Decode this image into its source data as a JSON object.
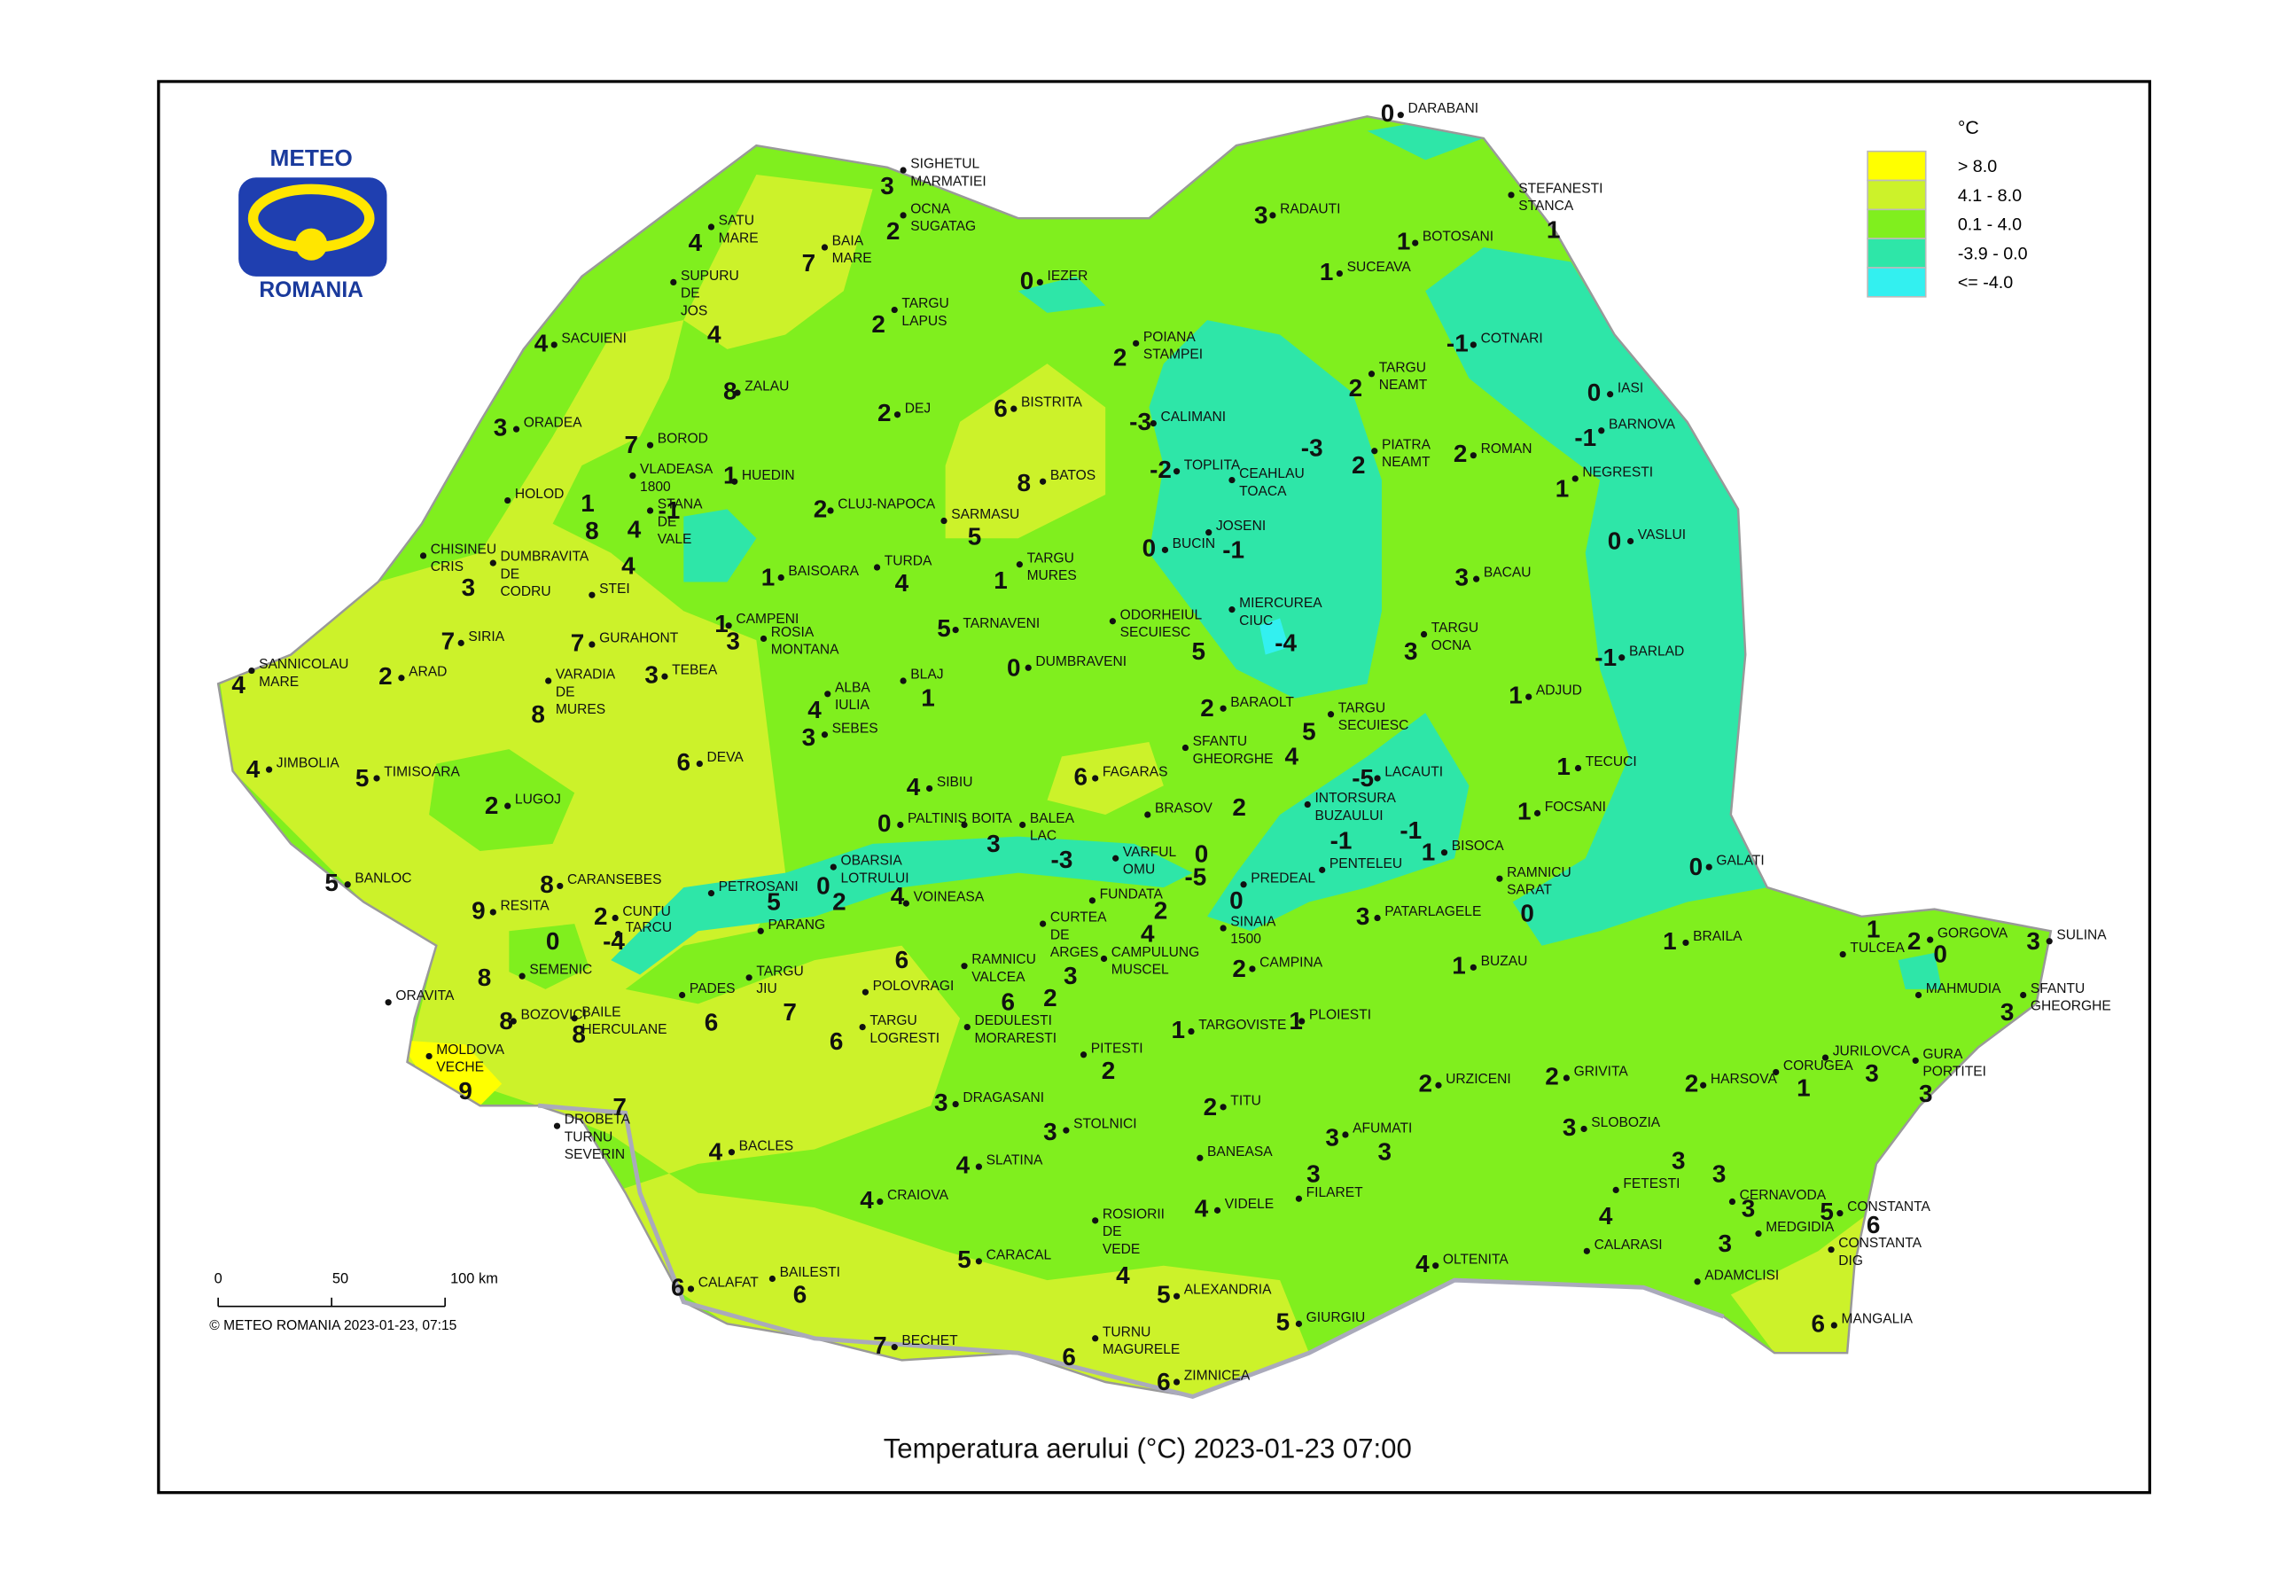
{
  "logo": {
    "top": "METEO",
    "bottom": "ROMANIA"
  },
  "legend": {
    "title": "°C",
    "items": [
      {
        "label": "> 8.0",
        "color": "#ffff00"
      },
      {
        "label": "4.1 - 8.0",
        "color": "#ccf22a"
      },
      {
        "label": "0.1 - 4.0",
        "color": "#80ef1e"
      },
      {
        "label": "-3.9 - 0.0",
        "color": "#2ee6a8"
      },
      {
        "label": "<= -4.0",
        "color": "#33f0f0"
      }
    ]
  },
  "scale_bar": {
    "labels": [
      "0",
      "50",
      "100 km"
    ]
  },
  "credit": "© METEO ROMANIA 2023-01-23, 07:15",
  "title": "Temperatura aerului (°C) 2023-01-23 07:00",
  "stations": [
    {
      "name": [
        "DARABANI"
      ],
      "value": 0
    },
    {
      "name": [
        "SIGHETUL",
        "MARMATIEI"
      ],
      "value": 3
    },
    {
      "name": [
        "OCNA",
        "SUGATAG"
      ],
      "value": 2
    },
    {
      "name": [
        "STEFANESTI",
        "STANCA"
      ],
      "value": 1
    },
    {
      "name": [
        "RADAUTI"
      ],
      "value": 3
    },
    {
      "name": [
        "BOTOSANI"
      ],
      "value": 1
    },
    {
      "name": [
        "SATU",
        "MARE"
      ],
      "value": 4
    },
    {
      "name": [
        "BAIA",
        "MARE"
      ],
      "value": 7
    },
    {
      "name": [
        "SUCEAVA"
      ],
      "value": 1
    },
    {
      "name": [
        "IEZER"
      ],
      "value": 0
    },
    {
      "name": [
        "SUPURU",
        "DE",
        "JOS"
      ],
      "value": 4
    },
    {
      "name": [
        "TARGU",
        "LAPUS"
      ],
      "value": 2
    },
    {
      "name": [
        "SACUIENI"
      ],
      "value": 4
    },
    {
      "name": [
        "COTNARI"
      ],
      "value": -1
    },
    {
      "name": [
        "POIANA",
        "STAMPEI"
      ],
      "value": 2
    },
    {
      "name": [
        "TARGU",
        "NEAMT"
      ],
      "value": 2
    },
    {
      "name": [
        "IASI"
      ],
      "value": 0
    },
    {
      "name": [
        "ZALAU"
      ],
      "value": 8
    },
    {
      "name": [
        "BISTRITA"
      ],
      "value": 6
    },
    {
      "name": [
        "DEJ"
      ],
      "value": 2
    },
    {
      "name": [
        "CALIMANI"
      ],
      "value": -3
    },
    {
      "name": [
        "BARNOVA"
      ],
      "value": -1
    },
    {
      "name": [
        "ORADEA"
      ],
      "value": 3
    },
    {
      "name": [
        "BOROD"
      ],
      "value": 7
    },
    {
      "name": [
        "PIATRA",
        "NEAMT"
      ],
      "value": 2
    },
    {
      "name": [
        "ROMAN"
      ],
      "value": 2
    },
    {
      "name": [
        "CEAHLAU",
        "TOACA"
      ],
      "value": -3
    },
    {
      "name": [
        "VLADEASA",
        "1800"
      ],
      "value": -1
    },
    {
      "name": [
        "HUEDIN"
      ],
      "value": 1
    },
    {
      "name": [
        "TOPLITA"
      ],
      "value": -2
    },
    {
      "name": [
        "NEGRESTI"
      ],
      "value": 1
    },
    {
      "name": [
        "BATOS"
      ],
      "value": 8
    },
    {
      "name": [
        "HOLOD"
      ],
      "value": 1
    },
    {
      "name": [
        "CLUJ-NAPOCA"
      ],
      "value": 2
    },
    {
      "name": [
        "SARMASU"
      ],
      "value": 5
    },
    {
      "name": [
        "JOSENI"
      ],
      "value": -1
    },
    {
      "name": [
        "BUCIN"
      ],
      "value": 0
    },
    {
      "name": [
        "VASLUI"
      ],
      "value": 0
    },
    {
      "name": [
        "CHISINEU",
        "CRIS"
      ],
      "value": 3
    },
    {
      "name": [
        "DUMBRAVITA",
        "DE",
        "CODRU"
      ],
      "value": 8
    },
    {
      "name": [
        "STANA",
        "DE",
        "VALE"
      ],
      "value": 4
    },
    {
      "name": [
        "STEI"
      ],
      "value": 4
    },
    {
      "name": [
        "BAISOARA"
      ],
      "value": 1
    },
    {
      "name": [
        "TURDA"
      ],
      "value": 4
    },
    {
      "name": [
        "TARGU",
        "MURES"
      ],
      "value": 1
    },
    {
      "name": [
        "BACAU"
      ],
      "value": 3
    },
    {
      "name": [
        "MIERCUREA",
        "CIUC"
      ],
      "value": -4
    },
    {
      "name": [
        "CAMPENI"
      ],
      "value": 1
    },
    {
      "name": [
        "ROSIA",
        "MONTANA"
      ],
      "value": 3
    },
    {
      "name": [
        "SIRIA"
      ],
      "value": 7
    },
    {
      "name": [
        "GURAHONT"
      ],
      "value": 7
    },
    {
      "name": [
        "TARNAVENI"
      ],
      "value": 5
    },
    {
      "name": [
        "ODORHEIUL",
        "SECUIESC"
      ],
      "value": 5
    },
    {
      "name": [
        "TARGU",
        "OCNA"
      ],
      "value": 3
    },
    {
      "name": [
        "BARLAD"
      ],
      "value": -1
    },
    {
      "name": [
        "SANNICOLAU",
        "MARE"
      ],
      "value": 4
    },
    {
      "name": [
        "ARAD"
      ],
      "value": 2
    },
    {
      "name": [
        "VARADIA",
        "DE",
        "MURES"
      ],
      "value": 8
    },
    {
      "name": [
        "TEBEA"
      ],
      "value": 3
    },
    {
      "name": [
        "DUMBRAVENI"
      ],
      "value": 0
    },
    {
      "name": [
        "BLAJ"
      ],
      "value": 1
    },
    {
      "name": [
        "ADJUD"
      ],
      "value": 1
    },
    {
      "name": [
        "ALBA",
        "IULIA"
      ],
      "value": 4
    },
    {
      "name": [
        "BARAOLT"
      ],
      "value": 2
    },
    {
      "name": [
        "TARGU",
        "SECUIESC"
      ],
      "value": 5
    },
    {
      "name": [
        "SEBES"
      ],
      "value": 3
    },
    {
      "name": [
        "JIMBOLIA"
      ],
      "value": 4
    },
    {
      "name": [
        "TIMISOARA"
      ],
      "value": 5
    },
    {
      "name": [
        "DEVA"
      ],
      "value": 6
    },
    {
      "name": [
        "FAGARAS"
      ],
      "value": 6
    },
    {
      "name": [
        "SFANTU",
        "GHEORGHE"
      ],
      "value": 4
    },
    {
      "name": [
        "LACAUTI"
      ],
      "value": -5
    },
    {
      "name": [
        "TECUCI"
      ],
      "value": 1
    },
    {
      "name": [
        "LUGOJ"
      ],
      "value": 2
    },
    {
      "name": [
        "SIBIU"
      ],
      "value": 4
    },
    {
      "name": [
        "BRASOV"
      ],
      "value": 2
    },
    {
      "name": [
        "FOCSANI"
      ],
      "value": 1
    },
    {
      "name": [
        "INTORSURA",
        "BUZAULUI"
      ],
      "value": -1
    },
    {
      "name": [
        "PALTINIS"
      ],
      "value": 0
    },
    {
      "name": [
        "BOITA"
      ],
      "value": 3
    },
    {
      "name": [
        "BALEA",
        "LAC"
      ],
      "value": -3
    },
    {
      "name": [
        "PENTELEU"
      ],
      "value": -1
    },
    {
      "name": [
        "BISOCA"
      ],
      "value": 1
    },
    {
      "name": [
        "GALATI"
      ],
      "value": 0
    },
    {
      "name": [
        "VARFUL",
        "OMU"
      ],
      "value": 0
    },
    {
      "name": [
        "OBARSIA",
        "LOTRULUI"
      ],
      "value": 0
    },
    {
      "name": [
        "BANLOC"
      ],
      "value": 5
    },
    {
      "name": [
        "CARANSEBES"
      ],
      "value": 8
    },
    {
      "name": [
        "PETROSANI"
      ],
      "value": 5
    },
    {
      "name": [
        "FUNDATA"
      ],
      "value": 2
    },
    {
      "name": [
        "PREDEAL"
      ],
      "value": -5
    },
    {
      "name": [
        "SINAIA",
        "1500"
      ],
      "value": 0
    },
    {
      "name": [
        "CAMPULUNG",
        "MUSCEL"
      ],
      "value": 4
    },
    {
      "name": [
        "RAMNICU",
        "SARAT"
      ],
      "value": 0
    },
    {
      "name": [
        "PARANG"
      ],
      "value": 2
    },
    {
      "name": [
        "VOINEASA"
      ],
      "value": 4
    },
    {
      "name": [
        "RESITA"
      ],
      "value": 9
    },
    {
      "name": [
        "CUNTU"
      ],
      "value": 2
    },
    {
      "name": [
        "TARCU"
      ],
      "value": -4
    },
    {
      "name": [
        "PATARLAGELE"
      ],
      "value": 3
    },
    {
      "name": [
        "CURTEA",
        "DE",
        "ARGES"
      ],
      "value": 3
    },
    {
      "name": [
        "SEMENIC"
      ],
      "value": 0
    },
    {
      "name": [
        "BRAILA"
      ],
      "value": 1
    },
    {
      "name": [
        "TULCEA"
      ],
      "value": 1
    },
    {
      "name": [
        "GORGOVA"
      ],
      "value": 2
    },
    {
      "name": [
        "SULINA"
      ],
      "value": 3
    },
    {
      "name": [
        "MAHMUDIA"
      ],
      "value": 0
    },
    {
      "name": [
        "POLOVRAGI"
      ],
      "value": 6
    },
    {
      "name": [
        "BUZAU"
      ],
      "value": 1
    },
    {
      "name": [
        "CAMPINA"
      ],
      "value": 2
    },
    {
      "name": [
        "ORAVITA"
      ],
      "value": 8
    },
    {
      "name": [
        "PADES"
      ],
      "value": 6
    },
    {
      "name": [
        "TARGU",
        "JIU"
      ],
      "value": 7
    },
    {
      "name": [
        "RAMNICU",
        "VALCEA"
      ],
      "value": 6
    },
    {
      "name": [
        "DEDULESTI",
        "MORARESTI"
      ],
      "value": 2
    },
    {
      "name": [
        "SFANTU",
        "GHEORGHE"
      ],
      "value": 3
    },
    {
      "name": [
        "BOZOVICI"
      ],
      "value": 8
    },
    {
      "name": [
        "BAILE",
        "HERCULANE"
      ],
      "value": 8
    },
    {
      "name": [
        "TARGU",
        "LOGRESTI"
      ],
      "value": 6
    },
    {
      "name": [
        "TARGOVISTE"
      ],
      "value": 1
    },
    {
      "name": [
        "PLOIESTI"
      ],
      "value": 1
    },
    {
      "name": [
        "MOLDOVA",
        "VECHE"
      ],
      "value": 9
    },
    {
      "name": [
        "PITESTI"
      ],
      "value": 2
    },
    {
      "name": [
        "JURILOVCA"
      ],
      "value": 3
    },
    {
      "name": [
        "CORUGEA"
      ],
      "value": 1
    },
    {
      "name": [
        "GURA",
        "PORTITEI"
      ],
      "value": 3
    },
    {
      "name": [
        "URZICENI"
      ],
      "value": 2
    },
    {
      "name": [
        "GRIVITA"
      ],
      "value": 2
    },
    {
      "name": [
        "HARSOVA"
      ],
      "value": 2
    },
    {
      "name": [
        "DROBETA",
        "TURNU",
        "SEVERIN"
      ],
      "value": 7
    },
    {
      "name": [
        "DRAGASANI"
      ],
      "value": 3
    },
    {
      "name": [
        "TITU"
      ],
      "value": 2
    },
    {
      "name": [
        "STOLNICI"
      ],
      "value": 3
    },
    {
      "name": [
        "SLOBOZIA"
      ],
      "value": 3
    },
    {
      "name": [
        "AFUMATI"
      ],
      "value": 3
    },
    {
      "name": [
        "BANEASA"
      ],
      "value": 3
    },
    {
      "name": [
        "FILARET"
      ],
      "value": 3
    },
    {
      "name": [
        "BACLES"
      ],
      "value": 4
    },
    {
      "name": [
        "SLATINA"
      ],
      "value": 4
    },
    {
      "name": [
        "FETESTI"
      ],
      "value": 3
    },
    {
      "name": [
        "CERNAVODA"
      ],
      "value": 3
    },
    {
      "name": [
        "CRAIOVA"
      ],
      "value": 4
    },
    {
      "name": [
        "VIDELE"
      ],
      "value": 4
    },
    {
      "name": [
        "ROSIORII",
        "DE",
        "VEDE"
      ],
      "value": 4
    },
    {
      "name": [
        "MEDGIDIA"
      ],
      "value": 3
    },
    {
      "name": [
        "CONSTANTA"
      ],
      "value": 5
    },
    {
      "name": [
        "CALARASI"
      ],
      "value": 4
    },
    {
      "name": [
        "CONSTANTA",
        "DIG"
      ],
      "value": 6
    },
    {
      "name": [
        "ADAMCLISI"
      ],
      "value": 3
    },
    {
      "name": [
        "CARACAL"
      ],
      "value": 5
    },
    {
      "name": [
        "OLTENITA"
      ],
      "value": 4
    },
    {
      "name": [
        "CALAFAT"
      ],
      "value": 6
    },
    {
      "name": [
        "BAILESTI"
      ],
      "value": 6
    },
    {
      "name": [
        "ALEXANDRIA"
      ],
      "value": 5
    },
    {
      "name": [
        "GIURGIU"
      ],
      "value": 5
    },
    {
      "name": [
        "MANGALIA"
      ],
      "value": 6
    },
    {
      "name": [
        "BECHET"
      ],
      "value": 7
    },
    {
      "name": [
        "TURNU",
        "MAGURELE"
      ],
      "value": 6
    },
    {
      "name": [
        "ZIMNICEA"
      ],
      "value": 6
    }
  ]
}
